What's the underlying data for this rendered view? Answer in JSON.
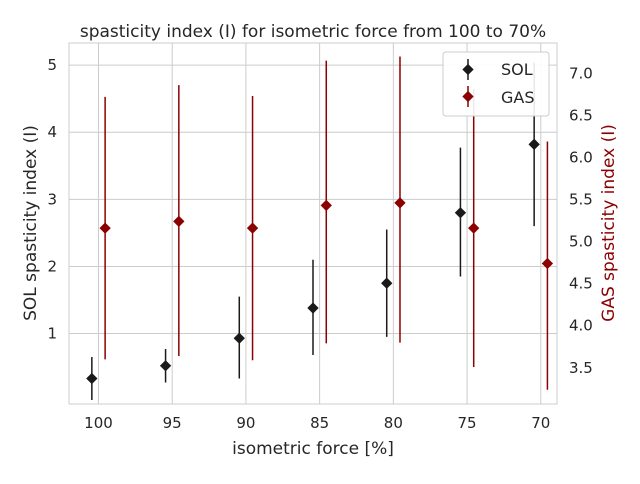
{
  "chart_data": {
    "type": "scatter",
    "title": "spasticity index (I) for isometric force from 100 to 70%",
    "xlabel": "isometric force [%]",
    "ylabel_left": "SOL spasticity index (I)",
    "ylabel_right": "GAS spasticity index (I)",
    "categories": [
      "100",
      "95",
      "90",
      "85",
      "80",
      "75",
      "70"
    ],
    "x_values": [
      100,
      95,
      90,
      85,
      80,
      75,
      70
    ],
    "xlim": [
      102.0,
      68.9
    ],
    "ylim_left": [
      -0.05,
      5.33
    ],
    "ylim_right": [
      3.07,
      7.36
    ],
    "yticks_left": [
      1,
      2,
      3,
      4,
      5
    ],
    "yticks_right": [
      3.5,
      4.0,
      4.5,
      5.0,
      5.5,
      6.0,
      6.5,
      7.0
    ],
    "legend_position": "top-right",
    "grid": true,
    "series": [
      {
        "name": "SOL",
        "axis": "left",
        "color": "#1a1a1a",
        "x_offset": 0.45,
        "values": [
          0.33,
          0.52,
          0.93,
          1.38,
          1.75,
          2.8,
          3.82
        ],
        "err_low": [
          0.32,
          0.25,
          0.6,
          0.7,
          0.8,
          0.95,
          1.22
        ],
        "err_high": [
          0.32,
          0.25,
          0.62,
          0.72,
          0.8,
          0.97,
          1.22
        ]
      },
      {
        "name": "GAS",
        "axis": "right",
        "color": "#8b0000",
        "x_offset": -0.45,
        "values": [
          5.16,
          5.24,
          5.16,
          5.43,
          5.46,
          5.16,
          4.74
        ],
        "err_low": [
          1.56,
          1.6,
          1.57,
          1.64,
          1.66,
          1.65,
          1.5
        ],
        "err_high": [
          1.56,
          1.62,
          1.57,
          1.72,
          1.74,
          1.65,
          1.45
        ]
      }
    ]
  }
}
